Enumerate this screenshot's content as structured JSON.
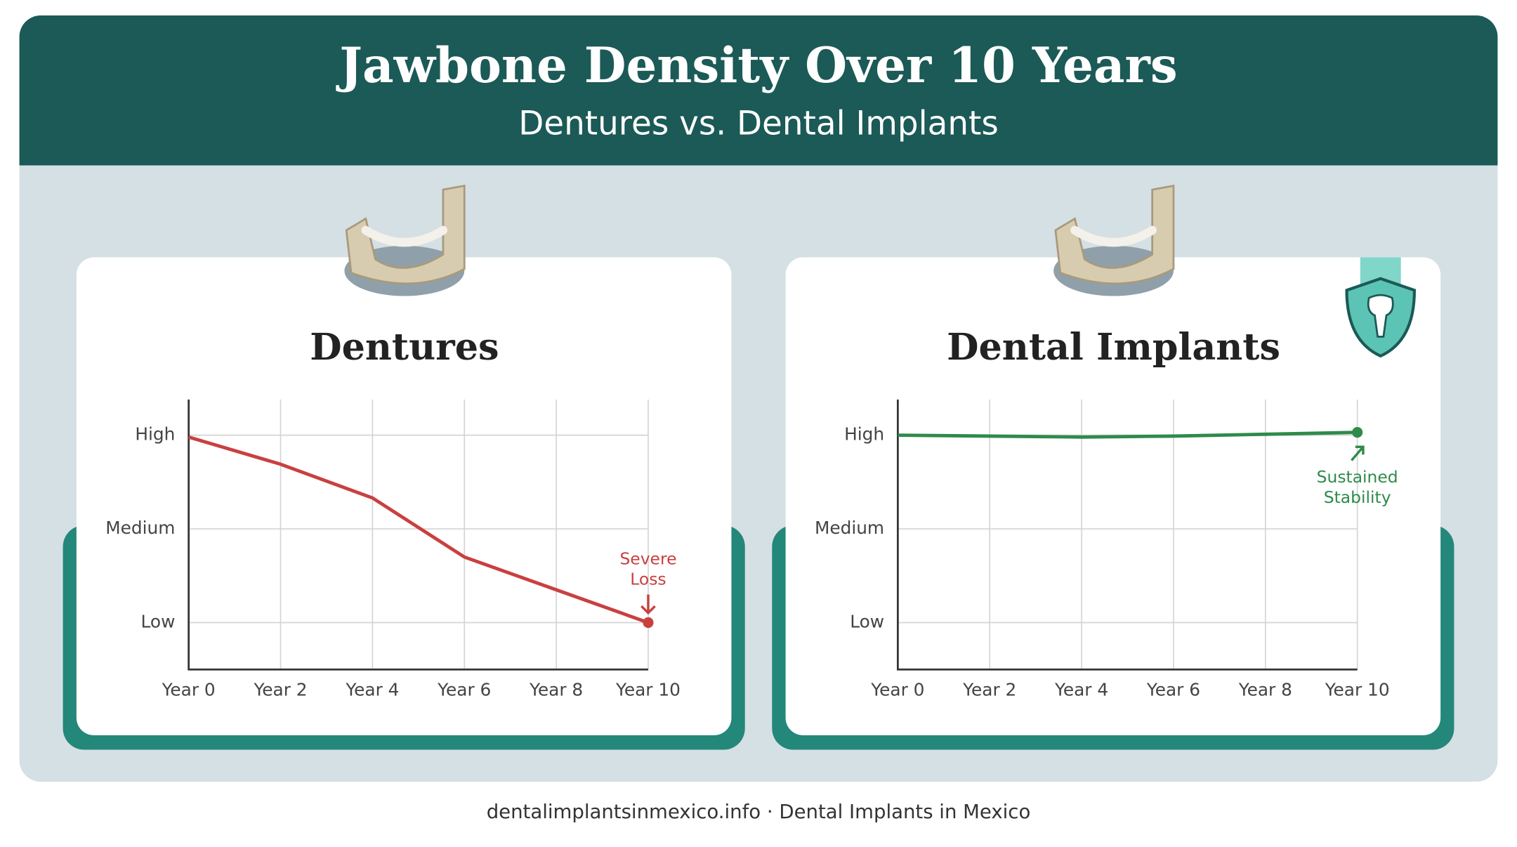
{
  "header": {
    "title": "Jawbone Density Over 10 Years",
    "subtitle": "Dentures vs. Dental Implants"
  },
  "chart_data": [
    {
      "type": "line",
      "title": "Dentures",
      "categories": [
        "Year 0",
        "Year 2",
        "Year 4",
        "Year 6",
        "Year 8",
        "Year 10"
      ],
      "series": [
        {
          "name": "Dentures",
          "color": "#c94040",
          "values": [
            2.98,
            2.69,
            2.33,
            1.7,
            1.35,
            1.0
          ]
        }
      ],
      "ylim": [
        0.5,
        3.38
      ],
      "yticks": [
        {
          "value": 1,
          "label": "Low"
        },
        {
          "value": 2,
          "label": "Medium"
        },
        {
          "value": 3,
          "label": "High"
        }
      ],
      "grid": true,
      "annotation": {
        "lines": [
          "Severe",
          "Loss"
        ],
        "direction": "down"
      }
    },
    {
      "type": "line",
      "title": "Dental Implants",
      "categories": [
        "Year 0",
        "Year 2",
        "Year 4",
        "Year 6",
        "Year 8",
        "Year 10"
      ],
      "series": [
        {
          "name": "Dental Implants",
          "color": "#2e8b4a",
          "values": [
            3.0,
            2.99,
            2.98,
            2.99,
            3.01,
            3.03
          ]
        }
      ],
      "ylim": [
        0.5,
        3.38
      ],
      "yticks": [
        {
          "value": 1,
          "label": "Low"
        },
        {
          "value": 2,
          "label": "Medium"
        },
        {
          "value": 3,
          "label": "High"
        }
      ],
      "grid": true,
      "annotation": {
        "lines": [
          "Sustained",
          "Stability"
        ],
        "direction": "up"
      }
    }
  ],
  "footer": "dentalimplantsinmexico.info · Dental Implants in Mexico"
}
